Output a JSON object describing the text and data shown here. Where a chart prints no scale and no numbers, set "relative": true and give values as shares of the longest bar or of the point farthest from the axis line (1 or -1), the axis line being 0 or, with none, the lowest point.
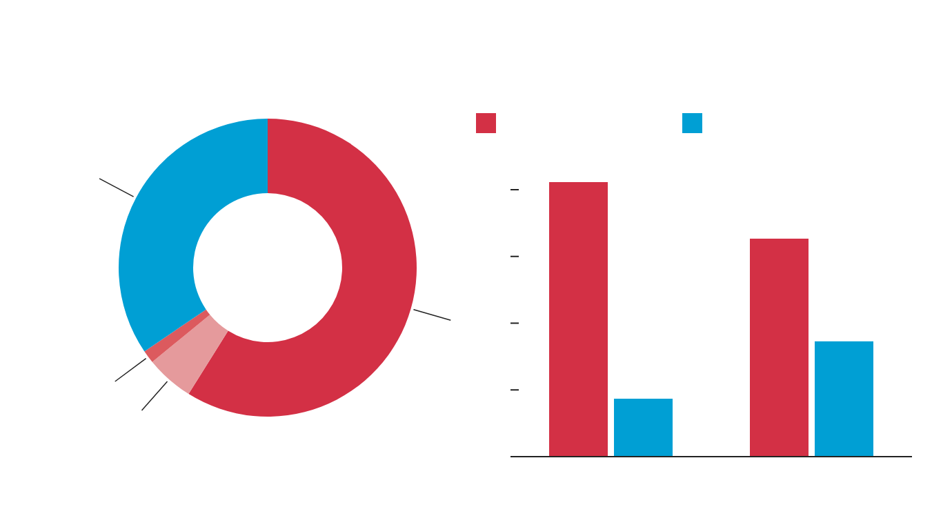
{
  "chart_data": [
    {
      "type": "donut",
      "categories": [
        null,
        null,
        null,
        null
      ],
      "values": [
        58.9,
        5.2,
        1.4,
        34.5
      ],
      "colors": [
        "#d33045",
        "#e59a9c",
        "#dc5a5e",
        "#009fd4"
      ]
    },
    {
      "type": "bar",
      "relative": true,
      "categories": [
        null,
        null
      ],
      "series": [
        {
          "color": "#d33045",
          "values": [
            1,
            0.794
          ]
        },
        {
          "color": "#009fd4",
          "values": [
            0.211,
            0.42
          ]
        }
      ]
    }
  ]
}
